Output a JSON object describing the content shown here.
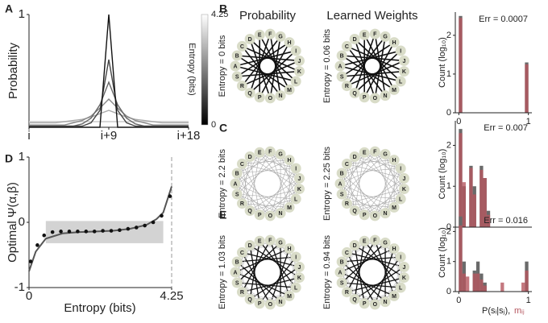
{
  "panel_labels": [
    "A",
    "B",
    "C",
    "D",
    "E"
  ],
  "networks": {
    "column_titles": [
      "Probability",
      "Learned Weights"
    ],
    "nodes": [
      "A",
      "B",
      "C",
      "D",
      "E",
      "F",
      "G",
      "H",
      "I",
      "J",
      "K",
      "L",
      "M",
      "N",
      "O",
      "P",
      "Q",
      "R",
      "S"
    ],
    "rows": [
      {
        "entropy_labels": [
          "Entropy = 0 bits",
          "Entropy = 0.06 bits"
        ]
      },
      {
        "entropy_labels": [
          "Entropy = 2.2 bits",
          "Entropy = 2.25 bits"
        ]
      },
      {
        "entropy_labels": [
          "Entropy = 1.03 bits",
          "Entropy = 0.94 bits"
        ]
      }
    ]
  },
  "chart_data": [
    {
      "type": "line",
      "ylabel": "Probability",
      "x": [
        0,
        1,
        2,
        3,
        4,
        5,
        6,
        7,
        8,
        9,
        10,
        11,
        12,
        13,
        14,
        15,
        16,
        17,
        18
      ],
      "xlim": [
        0,
        18
      ],
      "xticks": [
        {
          "value": 0,
          "label": "i"
        },
        {
          "value": 9,
          "label": "i+9"
        },
        {
          "value": 18,
          "label": "i+18"
        }
      ],
      "ylim": [
        0,
        1
      ],
      "yticks": [
        1
      ],
      "series": [
        {
          "color": "#111111",
          "values": [
            0,
            0,
            0,
            0,
            0,
            0,
            0,
            0,
            0,
            1,
            0,
            0,
            0,
            0,
            0,
            0,
            0,
            0,
            0
          ]
        },
        {
          "color": "#444444",
          "values": [
            0.01,
            0.01,
            0.01,
            0.01,
            0.01,
            0.01,
            0.01,
            0.04,
            0.15,
            0.6,
            0.15,
            0.04,
            0.01,
            0.01,
            0.01,
            0.01,
            0.01,
            0.01,
            0.01
          ]
        },
        {
          "color": "#666666",
          "values": [
            0.01,
            0.01,
            0.01,
            0.01,
            0.01,
            0.01,
            0.03,
            0.08,
            0.2,
            0.4,
            0.2,
            0.08,
            0.03,
            0.01,
            0.01,
            0.01,
            0.01,
            0.01,
            0.01
          ]
        },
        {
          "color": "#888888",
          "values": [
            0.02,
            0.02,
            0.02,
            0.02,
            0.02,
            0.04,
            0.06,
            0.1,
            0.17,
            0.25,
            0.17,
            0.1,
            0.06,
            0.04,
            0.02,
            0.02,
            0.02,
            0.02,
            0.02
          ]
        },
        {
          "color": "#aaaaaa",
          "values": [
            0.04,
            0.04,
            0.04,
            0.04,
            0.05,
            0.06,
            0.07,
            0.09,
            0.12,
            0.15,
            0.12,
            0.09,
            0.07,
            0.06,
            0.05,
            0.04,
            0.04,
            0.04,
            0.04
          ]
        },
        {
          "color": "#cccccc",
          "values": [
            0.05,
            0.05,
            0.05,
            0.05,
            0.05,
            0.05,
            0.05,
            0.05,
            0.05,
            0.05,
            0.05,
            0.05,
            0.05,
            0.05,
            0.05,
            0.05,
            0.05,
            0.05,
            0.05
          ]
        }
      ],
      "colorbar": {
        "label": "Entropy (bits)",
        "lim": [
          0,
          4.25
        ],
        "ticks": [
          0,
          4.25
        ]
      }
    },
    {
      "type": "scatter",
      "ylabel": "Optimal Ψ(α,β)",
      "xlabel": "Entropy (bits)",
      "xlim": [
        0,
        4.25
      ],
      "xticks": [
        0,
        4.25
      ],
      "ylim": [
        -1,
        1
      ],
      "yticks": [
        -1,
        0,
        1
      ],
      "shaded_region": {
        "x": [
          0.5,
          4.0
        ],
        "y": [
          -0.32,
          0.02
        ]
      },
      "x": [
        0.05,
        0.25,
        0.45,
        0.7,
        0.95,
        1.2,
        1.45,
        1.7,
        1.95,
        2.2,
        2.45,
        2.7,
        2.95,
        3.2,
        3.45,
        3.7,
        3.95,
        4.2
      ],
      "values": [
        -0.6,
        -0.35,
        -0.2,
        -0.15,
        -0.14,
        -0.14,
        -0.14,
        -0.14,
        -0.14,
        -0.13,
        -0.13,
        -0.12,
        -0.1,
        -0.08,
        -0.05,
        0.0,
        0.1,
        0.4
      ],
      "fit": {
        "x": [
          0,
          0.2,
          0.5,
          1,
          1.5,
          2,
          2.5,
          3,
          3.5,
          3.8,
          4,
          4.25
        ],
        "values": [
          -0.75,
          -0.45,
          -0.25,
          -0.17,
          -0.15,
          -0.14,
          -0.13,
          -0.1,
          -0.04,
          0.05,
          0.15,
          0.55
        ]
      }
    },
    {
      "type": "histogram",
      "annotation": "Err = 0.0007",
      "ylabel": "Count (log₁₀)",
      "bins": [
        0,
        0.05,
        0.1,
        0.15,
        0.2,
        0.25,
        0.3,
        0.35,
        0.4,
        0.45,
        0.5,
        0.55,
        0.6,
        0.65,
        0.7,
        0.75,
        0.8,
        0.85,
        0.9,
        0.95,
        1.0
      ],
      "xlim": [
        -0.05,
        1.05
      ],
      "xticks": [
        0,
        1
      ],
      "ylim": [
        0,
        2.6
      ],
      "yticks": [
        0,
        1,
        2
      ],
      "series": [
        {
          "color": "#6a6a6a",
          "values": [
            2.5,
            0,
            0,
            0,
            0,
            0,
            0,
            0,
            0,
            0,
            0,
            0,
            0,
            0,
            0,
            0,
            0,
            0,
            0,
            1.3
          ]
        },
        {
          "color": "#b5565f",
          "values": [
            2.45,
            0,
            0,
            0,
            0,
            0,
            0,
            0,
            0,
            0,
            0,
            0,
            0,
            0,
            0,
            0,
            0,
            0,
            0,
            1.25
          ]
        }
      ]
    },
    {
      "type": "histogram",
      "annotation": "Err = 0.007",
      "ylabel": "Count (log₁₀)",
      "bins": [
        0,
        0.05,
        0.1,
        0.15,
        0.2,
        0.25,
        0.3,
        0.35,
        0.4,
        0.45,
        0.5,
        0.55,
        0.6,
        0.65,
        0.7,
        0.75,
        0.8,
        0.85,
        0.9,
        0.95,
        1.0
      ],
      "xlim": [
        -0.05,
        1.05
      ],
      "ylim": [
        0,
        2.6
      ],
      "yticks": [
        0,
        1,
        2
      ],
      "series": [
        {
          "color": "#6a6a6a",
          "values": [
            2.4,
            1.0,
            0,
            1.5,
            1.0,
            0,
            1.5,
            1.2,
            0.4,
            0,
            0,
            0,
            0,
            0,
            0,
            0,
            0,
            0,
            0,
            0
          ]
        },
        {
          "color": "#b5565f",
          "values": [
            2.3,
            1.1,
            0,
            1.45,
            0.8,
            0,
            1.4,
            1.2,
            0.3,
            0,
            0,
            0,
            0,
            0,
            0,
            0,
            0,
            0,
            0,
            0
          ]
        }
      ]
    },
    {
      "type": "histogram",
      "annotation": "Err = 0.016",
      "ylabel": "Count (log₁₀)",
      "xlabel": "P(sᵢ|sⱼ),",
      "xlabel2": "mᵢⱼ",
      "bins": [
        0,
        0.05,
        0.1,
        0.15,
        0.2,
        0.25,
        0.3,
        0.35,
        0.4,
        0.45,
        0.5,
        0.55,
        0.6,
        0.65,
        0.7,
        0.75,
        0.8,
        0.85,
        0.9,
        0.95,
        1.0
      ],
      "xlim": [
        -0.05,
        1.05
      ],
      "xticks": [
        0,
        1
      ],
      "ylim": [
        0,
        2.6
      ],
      "yticks": [
        0,
        1,
        2
      ],
      "series": [
        {
          "color": "#6a6a6a",
          "values": [
            2.5,
            1.0,
            0,
            0,
            0.7,
            1.0,
            0.6,
            0.3,
            0,
            0,
            0,
            0,
            0,
            0,
            0,
            0,
            0,
            0,
            0,
            1.0
          ]
        },
        {
          "color": "#b5565f",
          "values": [
            2.2,
            0.6,
            0.5,
            0,
            0.6,
            0.6,
            0.4,
            0.2,
            0,
            0,
            0,
            0,
            0.3,
            0,
            0,
            0,
            0,
            0,
            0.3,
            0.7
          ]
        }
      ]
    }
  ]
}
